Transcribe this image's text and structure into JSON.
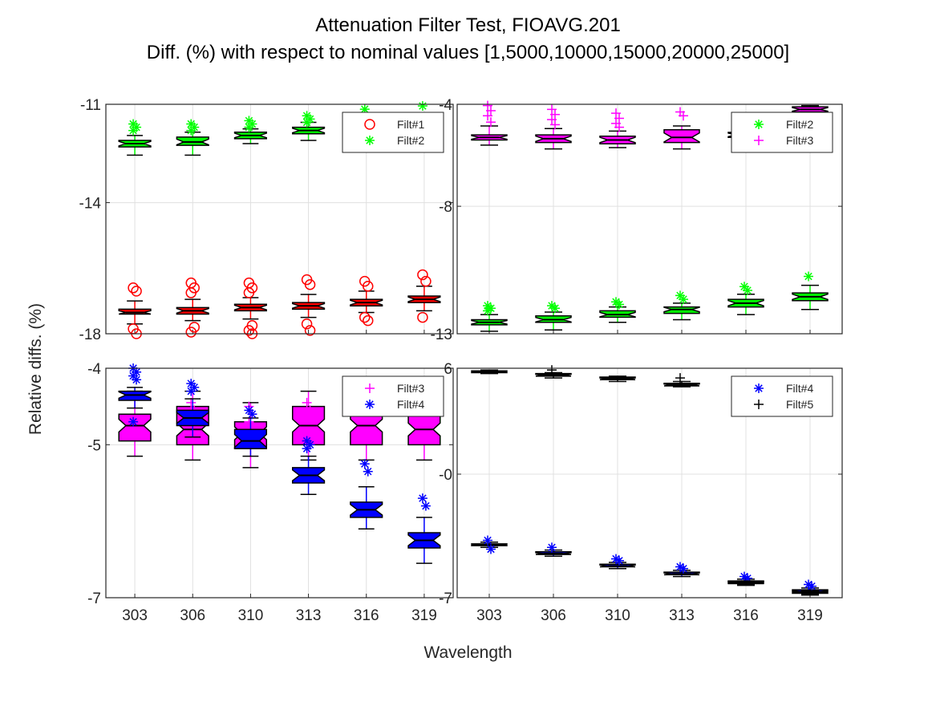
{
  "figure": {
    "title_line1": "Attenuation Filter Test, FIOAVG.201",
    "title_line2": "Diff. (%) with respect to nominal values [1,5000,10000,15000,20000,25000]",
    "xlabel": "Wavelength",
    "ylabel": "Relative diffs. (%)"
  },
  "colors": {
    "red": "#ff0000",
    "green": "#00ff00",
    "magenta": "#ff00ff",
    "blue": "#0000ff",
    "black": "#000000",
    "grid": "#e0e0e0"
  },
  "chart_data": [
    {
      "type": "box",
      "panel": "top-left",
      "categories": [
        "303",
        "306",
        "310",
        "313",
        "316",
        "319"
      ],
      "ylim": [
        -18,
        -11
      ],
      "yticks": [
        "-11",
        "-14",
        "-18"
      ],
      "ytick_values": [
        -11,
        -14,
        -18
      ],
      "show_xticklabels": false,
      "legend": {
        "placement": "top-right",
        "entries": [
          {
            "name": "Filt#1",
            "color": "red",
            "marker": "o"
          },
          {
            "name": "Filt#2",
            "color": "green",
            "marker": "*"
          }
        ]
      },
      "series": [
        {
          "name": "Filt#1",
          "color": "red",
          "marker": "o",
          "outlier_marker": "o",
          "boxes": [
            {
              "q1": -17.4,
              "median": -17.35,
              "q3": -17.25,
              "whisker_low": -17.7,
              "whisker_high": -17.0,
              "outliers": [
                -16.6,
                -16.7,
                -17.85,
                -18.0
              ]
            },
            {
              "q1": -17.4,
              "median": -17.3,
              "q3": -17.2,
              "whisker_low": -17.6,
              "whisker_high": -16.95,
              "outliers": [
                -16.45,
                -16.6,
                -16.75,
                -17.8,
                -17.95
              ]
            },
            {
              "q1": -17.3,
              "median": -17.2,
              "q3": -17.1,
              "whisker_low": -17.55,
              "whisker_high": -16.9,
              "outliers": [
                -16.45,
                -16.6,
                -16.75,
                -17.75,
                -17.9,
                -18.0
              ]
            },
            {
              "q1": -17.25,
              "median": -17.15,
              "q3": -17.05,
              "whisker_low": -17.5,
              "whisker_high": -16.8,
              "outliers": [
                -16.35,
                -16.5,
                -17.7,
                -17.9
              ]
            },
            {
              "q1": -17.15,
              "median": -17.05,
              "q3": -16.95,
              "whisker_low": -17.35,
              "whisker_high": -16.7,
              "outliers": [
                -16.4,
                -16.55,
                -17.5,
                -17.6
              ]
            },
            {
              "q1": -17.05,
              "median": -16.95,
              "q3": -16.85,
              "whisker_low": -17.3,
              "whisker_high": -16.55,
              "outliers": [
                -16.2,
                -16.4,
                -17.5
              ]
            }
          ]
        },
        {
          "name": "Filt#2",
          "color": "green",
          "marker": "*",
          "outlier_marker": "*",
          "boxes": [
            {
              "q1": -12.3,
              "median": -12.2,
              "q3": -12.1,
              "whisker_low": -12.55,
              "whisker_high": -11.95,
              "outliers": [
                -11.6,
                -11.7,
                -11.8
              ]
            },
            {
              "q1": -12.25,
              "median": -12.15,
              "q3": -12.0,
              "whisker_low": -12.55,
              "whisker_high": -11.85,
              "outliers": [
                -11.6,
                -11.7,
                -11.8
              ]
            },
            {
              "q1": -12.05,
              "median": -11.95,
              "q3": -11.85,
              "whisker_low": -12.2,
              "whisker_high": -11.75,
              "outliers": [
                -11.5,
                -11.6,
                -11.7
              ]
            },
            {
              "q1": -11.9,
              "median": -11.8,
              "q3": -11.7,
              "whisker_low": -12.1,
              "whisker_high": -11.55,
              "outliers": [
                -11.35,
                -11.45,
                -11.55
              ]
            },
            {
              "q1": -12.0,
              "median": -11.85,
              "q3": -11.7,
              "whisker_low": -12.15,
              "whisker_high": -11.5,
              "outliers": [
                -11.15
              ]
            },
            {
              "q1": -12.0,
              "median": -11.85,
              "q3": -11.7,
              "whisker_low": -12.1,
              "whisker_high": -11.5,
              "outliers": [
                -11.05
              ]
            }
          ]
        }
      ]
    },
    {
      "type": "box",
      "panel": "top-right",
      "categories": [
        "303",
        "306",
        "310",
        "313",
        "316",
        "319"
      ],
      "ylim": [
        -13,
        -4
      ],
      "yticks": [
        "-4",
        "-8",
        "-13"
      ],
      "ytick_values": [
        -4,
        -8,
        -13
      ],
      "show_xticklabels": false,
      "legend": {
        "placement": "top-right",
        "entries": [
          {
            "name": "Filt#2",
            "color": "green",
            "marker": "*"
          },
          {
            "name": "Filt#3",
            "color": "magenta",
            "marker": "+"
          }
        ]
      },
      "series": [
        {
          "name": "Filt#2",
          "color": "green",
          "marker": "*",
          "outlier_marker": "*",
          "boxes": [
            {
              "q1": -12.65,
              "median": -12.55,
              "q3": -12.45,
              "whisker_low": -12.9,
              "whisker_high": -12.25,
              "outliers": [
                -11.9,
                -12.0,
                -12.1
              ]
            },
            {
              "q1": -12.55,
              "median": -12.45,
              "q3": -12.3,
              "whisker_low": -12.85,
              "whisker_high": -12.15,
              "outliers": [
                -11.9,
                -12.0
              ]
            },
            {
              "q1": -12.35,
              "median": -12.25,
              "q3": -12.1,
              "whisker_low": -12.55,
              "whisker_high": -11.95,
              "outliers": [
                -11.75,
                -11.85
              ]
            },
            {
              "q1": -12.2,
              "median": -12.05,
              "q3": -11.95,
              "whisker_low": -12.45,
              "whisker_high": -11.8,
              "outliers": [
                -11.5,
                -11.65
              ]
            },
            {
              "q1": -11.95,
              "median": -11.8,
              "q3": -11.65,
              "whisker_low": -12.25,
              "whisker_high": -11.45,
              "outliers": [
                -11.15,
                -11.3
              ]
            },
            {
              "q1": -11.7,
              "median": -11.55,
              "q3": -11.4,
              "whisker_low": -12.05,
              "whisker_high": -11.1,
              "outliers": [
                -10.75
              ]
            }
          ]
        },
        {
          "name": "Filt#3",
          "color": "magenta",
          "marker": "+",
          "outlier_marker": "+",
          "boxes": [
            {
              "q1": -5.4,
              "median": -5.3,
              "q3": -5.2,
              "whisker_low": -5.6,
              "whisker_high": -4.85,
              "outliers": [
                -4.05,
                -4.25,
                -4.45,
                -4.7
              ]
            },
            {
              "q1": -5.5,
              "median": -5.35,
              "q3": -5.2,
              "whisker_low": -5.75,
              "whisker_high": -4.95,
              "outliers": [
                -4.2,
                -4.4,
                -4.6,
                -4.8
              ]
            },
            {
              "q1": -5.55,
              "median": -5.4,
              "q3": -5.25,
              "whisker_low": -5.7,
              "whisker_high": -5.05,
              "outliers": [
                -4.35,
                -4.55,
                -4.75,
                -4.9
              ]
            },
            {
              "q1": -5.5,
              "median": -5.3,
              "q3": -5.0,
              "whisker_low": -5.75,
              "whisker_high": -4.85,
              "outliers": [
                -4.3,
                -4.45
              ]
            },
            {
              "q1": -5.3,
              "median": -5.2,
              "q3": -5.1,
              "whisker_low": -5.3,
              "whisker_high": -5.1,
              "outliers": []
            },
            {
              "q1": -4.3,
              "median": -4.2,
              "q3": -4.1,
              "whisker_low": -4.35,
              "whisker_high": -4.05,
              "outliers": []
            }
          ]
        }
      ]
    },
    {
      "type": "box",
      "panel": "bottom-left",
      "categories": [
        "303",
        "306",
        "310",
        "313",
        "316",
        "319"
      ],
      "ylim": [
        -7,
        -4
      ],
      "yticks": [
        "-4",
        "-5",
        "-7"
      ],
      "ytick_values": [
        -4,
        -5,
        -7
      ],
      "show_xticklabels": true,
      "legend": {
        "placement": "top-right",
        "entries": [
          {
            "name": "Filt#3",
            "color": "magenta",
            "marker": "+"
          },
          {
            "name": "Filt#4",
            "color": "blue",
            "marker": "*"
          }
        ]
      },
      "series": [
        {
          "name": "Filt#3",
          "color": "magenta",
          "marker": "+",
          "outlier_marker": "+",
          "boxes": [
            {
              "q1": -4.95,
              "median": -4.75,
              "q3": -4.6,
              "whisker_low": -5.15,
              "whisker_high": -4.3,
              "outliers": []
            },
            {
              "q1": -5.0,
              "median": -4.8,
              "q3": -4.5,
              "whisker_low": -5.2,
              "whisker_high": -4.3,
              "outliers": [
                -4.45,
                -4.55,
                -4.65
              ]
            },
            {
              "q1": -5.05,
              "median": -4.85,
              "q3": -4.7,
              "whisker_low": -5.3,
              "whisker_high": -4.45,
              "outliers": [
                -4.5,
                -4.6,
                -4.7,
                -4.8
              ]
            },
            {
              "q1": -5.0,
              "median": -4.75,
              "q3": -4.5,
              "whisker_low": -5.2,
              "whisker_high": -4.3,
              "outliers": [
                -4.45,
                -4.55
              ]
            },
            {
              "q1": -5.0,
              "median": -4.75,
              "q3": -4.45,
              "whisker_low": -5.2,
              "whisker_high": -4.25,
              "outliers": []
            },
            {
              "q1": -5.0,
              "median": -4.8,
              "q3": -4.45,
              "whisker_low": -5.2,
              "whisker_high": -4.25,
              "outliers": []
            }
          ]
        },
        {
          "name": "Filt#4",
          "color": "blue",
          "marker": "*",
          "outlier_marker": "*",
          "boxes": [
            {
              "q1": -4.42,
              "median": -4.35,
              "q3": -4.3,
              "whisker_low": -4.52,
              "whisker_high": -4.25,
              "outliers": [
                -4.0,
                -4.05,
                -4.1,
                -4.15,
                -4.7
              ]
            },
            {
              "q1": -4.75,
              "median": -4.65,
              "q3": -4.55,
              "whisker_low": -4.9,
              "whisker_high": -4.4,
              "outliers": [
                -4.2,
                -4.25,
                -4.3
              ]
            },
            {
              "q1": -5.05,
              "median": -4.95,
              "q3": -4.8,
              "whisker_low": -5.15,
              "whisker_high": -4.65,
              "outliers": [
                -4.55,
                -4.6
              ]
            },
            {
              "q1": -5.5,
              "median": -5.4,
              "q3": -5.3,
              "whisker_low": -5.65,
              "whisker_high": -5.15,
              "outliers": [
                -4.95,
                -5.0,
                -5.05
              ]
            },
            {
              "q1": -5.95,
              "median": -5.85,
              "q3": -5.75,
              "whisker_low": -6.1,
              "whisker_high": -5.55,
              "outliers": [
                -5.25,
                -5.35
              ]
            },
            {
              "q1": -6.35,
              "median": -6.25,
              "q3": -6.15,
              "whisker_low": -6.55,
              "whisker_high": -5.95,
              "outliers": [
                -5.7,
                -5.8
              ]
            }
          ]
        }
      ]
    },
    {
      "type": "box",
      "panel": "bottom-right",
      "categories": [
        "303",
        "306",
        "310",
        "313",
        "316",
        "319"
      ],
      "ylim": [
        -7,
        6
      ],
      "yticks": [
        "6",
        "-0",
        "-7"
      ],
      "ytick_values": [
        6,
        0,
        -7
      ],
      "show_xticklabels": true,
      "legend": {
        "placement": "top-right",
        "entries": [
          {
            "name": "Filt#4",
            "color": "blue",
            "marker": "*"
          },
          {
            "name": "Filt#5",
            "color": "black",
            "marker": "+"
          }
        ]
      },
      "series": [
        {
          "name": "Filt#4",
          "color": "blue",
          "marker": "*",
          "outlier_marker": "*",
          "boxes": [
            {
              "q1": -4.05,
              "median": -4.0,
              "q3": -3.95,
              "whisker_low": -4.15,
              "whisker_high": -3.85,
              "outliers": [
                -3.75,
                -4.25
              ]
            },
            {
              "q1": -4.55,
              "median": -4.5,
              "q3": -4.4,
              "whisker_low": -4.65,
              "whisker_high": -4.3,
              "outliers": [
                -4.15
              ]
            },
            {
              "q1": -5.25,
              "median": -5.2,
              "q3": -5.1,
              "whisker_low": -5.35,
              "whisker_high": -5.0,
              "outliers": [
                -4.8,
                -4.9
              ]
            },
            {
              "q1": -5.7,
              "median": -5.65,
              "q3": -5.55,
              "whisker_low": -5.8,
              "whisker_high": -5.45,
              "outliers": [
                -5.25,
                -5.35
              ]
            },
            {
              "q1": -6.2,
              "median": -6.15,
              "q3": -6.05,
              "whisker_low": -6.3,
              "whisker_high": -5.95,
              "outliers": [
                -5.8,
                -5.9
              ]
            },
            {
              "q1": -6.7,
              "median": -6.65,
              "q3": -6.55,
              "whisker_low": -6.8,
              "whisker_high": -6.45,
              "outliers": [
                -6.25,
                -6.35
              ]
            }
          ]
        },
        {
          "name": "Filt#5",
          "color": "black",
          "marker": "+",
          "outlier_marker": "+",
          "boxes": [
            {
              "q1": 5.75,
              "median": 5.8,
              "q3": 5.85,
              "whisker_low": 5.7,
              "whisker_high": 5.9,
              "outliers": []
            },
            {
              "q1": 5.55,
              "median": 5.6,
              "q3": 5.7,
              "whisker_low": 5.45,
              "whisker_high": 5.75,
              "outliers": [
                5.9
              ]
            },
            {
              "q1": 5.35,
              "median": 5.4,
              "q3": 5.5,
              "whisker_low": 5.25,
              "whisker_high": 5.55,
              "outliers": []
            },
            {
              "q1": 5.0,
              "median": 5.05,
              "q3": 5.15,
              "whisker_low": 4.95,
              "whisker_high": 5.25,
              "outliers": [
                5.45
              ]
            },
            {
              "q1": -6.2,
              "median": -6.15,
              "q3": -6.1,
              "whisker_low": -6.25,
              "whisker_high": -6.05,
              "outliers": []
            },
            {
              "q1": -6.75,
              "median": -6.7,
              "q3": -6.65,
              "whisker_low": -6.85,
              "whisker_high": -6.6,
              "outliers": []
            }
          ]
        }
      ]
    }
  ]
}
